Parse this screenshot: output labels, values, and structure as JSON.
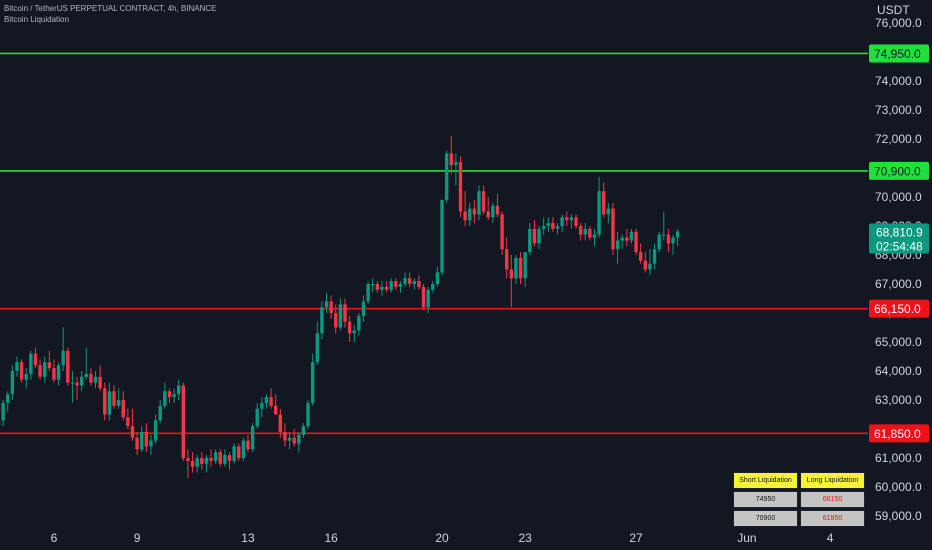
{
  "header": {
    "symbol_line": "Bitcoin / TetherUS PERPETUAL CONTRACT, 4h, BINANCE",
    "indicator_line": "Bitcoin Liquidation"
  },
  "price_axis": {
    "currency": "USDT",
    "ticks": [
      "76,000.0",
      "75,000.0",
      "74,000.0",
      "73,000.0",
      "72,000.0",
      "71,000.0",
      "70,000.0",
      "69,000.0",
      "68,000.0",
      "67,000.0",
      "66,000.0",
      "65,000.0",
      "64,000.0",
      "63,000.0",
      "62,000.0",
      "61,000.0",
      "60,000.0",
      "59,000.0"
    ]
  },
  "time_axis": {
    "labels": [
      "6",
      "9",
      "13",
      "16",
      "20",
      "23",
      "27",
      "Jun",
      "4"
    ]
  },
  "levels": [
    {
      "label": "74,950.0",
      "price": 74950,
      "color": "#22e03c",
      "kind": "short"
    },
    {
      "label": "70,900.0",
      "price": 70900,
      "color": "#22e03c",
      "kind": "short"
    },
    {
      "label": "66,150.0",
      "price": 66150,
      "color": "#f0121b",
      "kind": "long"
    },
    {
      "label": "61,850.0",
      "price": 61850,
      "color": "#f0121b",
      "kind": "long"
    }
  ],
  "last_price": {
    "value": "68,810.9",
    "countdown": "02:54:48",
    "color": "#089981"
  },
  "liquidation_table": {
    "headers": [
      "Short Liquidation",
      "Long Liquidation"
    ],
    "rows": [
      [
        "74950",
        "66150"
      ],
      [
        "70900",
        "61850"
      ]
    ],
    "long_value_color": "#f0121b"
  },
  "colors": {
    "background": "#131722",
    "up": "#089981",
    "down": "#f23645"
  },
  "chart_data": {
    "type": "candlestick",
    "timeframe": "4h",
    "ylim": [
      58700,
      76300
    ],
    "x_ticks": [
      {
        "label": "6",
        "index": 12
      },
      {
        "label": "9",
        "index": 30
      },
      {
        "label": "13",
        "index": 54
      },
      {
        "label": "16",
        "index": 72
      },
      {
        "label": "20",
        "index": 96
      },
      {
        "label": "23",
        "index": 114
      },
      {
        "label": "27",
        "index": 138
      },
      {
        "label": "Jun",
        "index": 162
      },
      {
        "label": "4",
        "index": 180
      }
    ],
    "ohlc": [
      [
        62100,
        62500,
        61700,
        62300
      ],
      [
        62300,
        63000,
        62100,
        62900
      ],
      [
        62900,
        63300,
        62600,
        63200
      ],
      [
        63200,
        64200,
        63000,
        64000
      ],
      [
        64000,
        64500,
        63800,
        64300
      ],
      [
        64300,
        64400,
        63600,
        63700
      ],
      [
        63700,
        64100,
        63400,
        63900
      ],
      [
        63900,
        64700,
        63700,
        64600
      ],
      [
        64600,
        64800,
        64100,
        64200
      ],
      [
        64200,
        64400,
        63700,
        63800
      ],
      [
        63800,
        64500,
        63600,
        64300
      ],
      [
        64300,
        64700,
        64000,
        64100
      ],
      [
        64100,
        64400,
        63600,
        63700
      ],
      [
        63700,
        64300,
        63500,
        64200
      ],
      [
        64200,
        65500,
        64000,
        64700
      ],
      [
        64700,
        64800,
        63500,
        63600
      ],
      [
        63600,
        64000,
        62900,
        63600
      ],
      [
        63600,
        63800,
        63000,
        63500
      ],
      [
        63500,
        64000,
        63300,
        63800
      ],
      [
        63800,
        64800,
        63700,
        63900
      ],
      [
        63900,
        64100,
        63500,
        63600
      ],
      [
        63600,
        64000,
        63400,
        63800
      ],
      [
        63800,
        64200,
        63300,
        63400
      ],
      [
        63400,
        63600,
        62300,
        62500
      ],
      [
        62500,
        63600,
        62300,
        63300
      ],
      [
        63300,
        63500,
        62700,
        62800
      ],
      [
        62800,
        63400,
        62700,
        63000
      ],
      [
        63000,
        63300,
        62300,
        62400
      ],
      [
        62400,
        62700,
        62000,
        62100
      ],
      [
        62100,
        62700,
        61600,
        61700
      ],
      [
        61700,
        61900,
        61100,
        61300
      ],
      [
        61300,
        62100,
        61200,
        61900
      ],
      [
        61900,
        62200,
        61200,
        61400
      ],
      [
        61400,
        61800,
        61100,
        61600
      ],
      [
        61600,
        62500,
        61500,
        62300
      ],
      [
        62300,
        63000,
        62200,
        62800
      ],
      [
        62800,
        63600,
        62700,
        63300
      ],
      [
        63300,
        63400,
        62900,
        63100
      ],
      [
        63100,
        63400,
        62900,
        63200
      ],
      [
        63200,
        63700,
        63000,
        63500
      ],
      [
        63500,
        63600,
        60900,
        61000
      ],
      [
        61000,
        61300,
        60300,
        60900
      ],
      [
        60900,
        61200,
        60500,
        60700
      ],
      [
        60700,
        61100,
        60500,
        61000
      ],
      [
        61000,
        61200,
        60600,
        60800
      ],
      [
        60800,
        61100,
        60500,
        61000
      ],
      [
        61000,
        61300,
        60700,
        60900
      ],
      [
        60900,
        61300,
        60800,
        61200
      ],
      [
        61200,
        61300,
        60700,
        60800
      ],
      [
        60800,
        61300,
        60700,
        61100
      ],
      [
        61100,
        61200,
        60600,
        60900
      ],
      [
        60900,
        61500,
        60800,
        61400
      ],
      [
        61400,
        61500,
        60900,
        61000
      ],
      [
        61000,
        61700,
        60900,
        61600
      ],
      [
        61600,
        61800,
        61200,
        61300
      ],
      [
        61300,
        62200,
        61200,
        62100
      ],
      [
        62100,
        62900,
        62000,
        62700
      ],
      [
        62700,
        63100,
        62400,
        62900
      ],
      [
        62900,
        63200,
        62700,
        63100
      ],
      [
        63100,
        63400,
        62700,
        62800
      ],
      [
        62800,
        63200,
        62500,
        62500
      ],
      [
        62500,
        62700,
        61700,
        61900
      ],
      [
        61900,
        62200,
        61400,
        61600
      ],
      [
        61600,
        61900,
        61300,
        61700
      ],
      [
        61700,
        62000,
        61400,
        61500
      ],
      [
        61500,
        61900,
        61200,
        61800
      ],
      [
        61800,
        62200,
        61700,
        62100
      ],
      [
        62100,
        63000,
        62000,
        62900
      ],
      [
        62900,
        64600,
        62800,
        64300
      ],
      [
        64300,
        65700,
        64200,
        65300
      ],
      [
        65300,
        66400,
        65100,
        66200
      ],
      [
        66200,
        66700,
        66000,
        66400
      ],
      [
        66400,
        66600,
        65800,
        66000
      ],
      [
        66000,
        66300,
        65300,
        65500
      ],
      [
        65500,
        66500,
        65400,
        66300
      ],
      [
        66300,
        66500,
        65500,
        65700
      ],
      [
        65700,
        65900,
        65000,
        65300
      ],
      [
        65300,
        65600,
        65000,
        65400
      ],
      [
        65400,
        66000,
        65200,
        65900
      ],
      [
        65900,
        66600,
        65700,
        66400
      ],
      [
        66400,
        67100,
        66300,
        67000
      ],
      [
        67000,
        67200,
        66700,
        67000
      ],
      [
        67000,
        67100,
        66700,
        66800
      ],
      [
        66800,
        67100,
        66600,
        66900
      ],
      [
        66900,
        67100,
        66700,
        66800
      ],
      [
        66800,
        67200,
        66700,
        67100
      ],
      [
        67100,
        67200,
        66800,
        66900
      ],
      [
        66900,
        67100,
        66700,
        67000
      ],
      [
        67000,
        67400,
        66900,
        67200
      ],
      [
        67200,
        67400,
        66900,
        67000
      ],
      [
        67000,
        67200,
        66800,
        67100
      ],
      [
        67100,
        67300,
        66800,
        66900
      ],
      [
        66900,
        67000,
        66100,
        66200
      ],
      [
        66200,
        66900,
        66000,
        66800
      ],
      [
        66800,
        67100,
        66700,
        67000
      ],
      [
        67000,
        67600,
        66900,
        67400
      ],
      [
        67400,
        69900,
        67300,
        69900
      ],
      [
        69900,
        71600,
        69800,
        71500
      ],
      [
        71500,
        72100,
        70800,
        71100
      ],
      [
        71100,
        71500,
        70400,
        71200
      ],
      [
        71200,
        71400,
        69300,
        69500
      ],
      [
        69500,
        70200,
        69000,
        69200
      ],
      [
        69200,
        69800,
        69000,
        69600
      ],
      [
        69600,
        69900,
        69100,
        69400
      ],
      [
        69400,
        70400,
        69200,
        70200
      ],
      [
        70200,
        70400,
        69400,
        69500
      ],
      [
        69500,
        70000,
        69200,
        69300
      ],
      [
        69300,
        69800,
        69100,
        69700
      ],
      [
        69700,
        70100,
        69300,
        69400
      ],
      [
        69400,
        69500,
        68000,
        68200
      ],
      [
        68200,
        68600,
        67200,
        67500
      ],
      [
        67500,
        68000,
        66200,
        67200
      ],
      [
        67200,
        68000,
        67000,
        67900
      ],
      [
        67900,
        68100,
        67000,
        67200
      ],
      [
        67200,
        68000,
        66900,
        68100
      ],
      [
        68100,
        69100,
        68000,
        68900
      ],
      [
        68900,
        69200,
        68300,
        68400
      ],
      [
        68400,
        69000,
        68200,
        68900
      ],
      [
        68900,
        69300,
        68700,
        69000
      ],
      [
        69000,
        69300,
        68800,
        69100
      ],
      [
        69100,
        69300,
        68800,
        68900
      ],
      [
        68900,
        69100,
        68700,
        69000
      ],
      [
        69000,
        69400,
        68800,
        69300
      ],
      [
        69300,
        69500,
        69000,
        69200
      ],
      [
        69200,
        69400,
        68900,
        69300
      ],
      [
        69300,
        69400,
        68900,
        69000
      ],
      [
        69000,
        69100,
        68500,
        68700
      ],
      [
        68700,
        69100,
        68500,
        68900
      ],
      [
        68900,
        69000,
        68500,
        68600
      ],
      [
        68600,
        68900,
        68300,
        68700
      ],
      [
        68700,
        70700,
        68600,
        70200
      ],
      [
        70200,
        70500,
        69300,
        69400
      ],
      [
        69400,
        69800,
        69100,
        69600
      ],
      [
        69600,
        69800,
        68000,
        68200
      ],
      [
        68200,
        68800,
        67700,
        68500
      ],
      [
        68500,
        68700,
        68200,
        68600
      ],
      [
        68600,
        68900,
        68300,
        68500
      ],
      [
        68500,
        68900,
        68400,
        68800
      ],
      [
        68800,
        68900,
        68000,
        68100
      ],
      [
        68100,
        68400,
        67700,
        67800
      ],
      [
        67800,
        68100,
        67400,
        67500
      ],
      [
        67500,
        68200,
        67300,
        67700
      ],
      [
        67700,
        68400,
        67500,
        68200
      ],
      [
        68200,
        68800,
        68100,
        68700
      ],
      [
        68700,
        69500,
        68500,
        68700
      ],
      [
        68700,
        68900,
        68100,
        68400
      ],
      [
        68400,
        68700,
        68000,
        68600
      ],
      [
        68600,
        68900,
        68300,
        68810.9
      ]
    ]
  }
}
